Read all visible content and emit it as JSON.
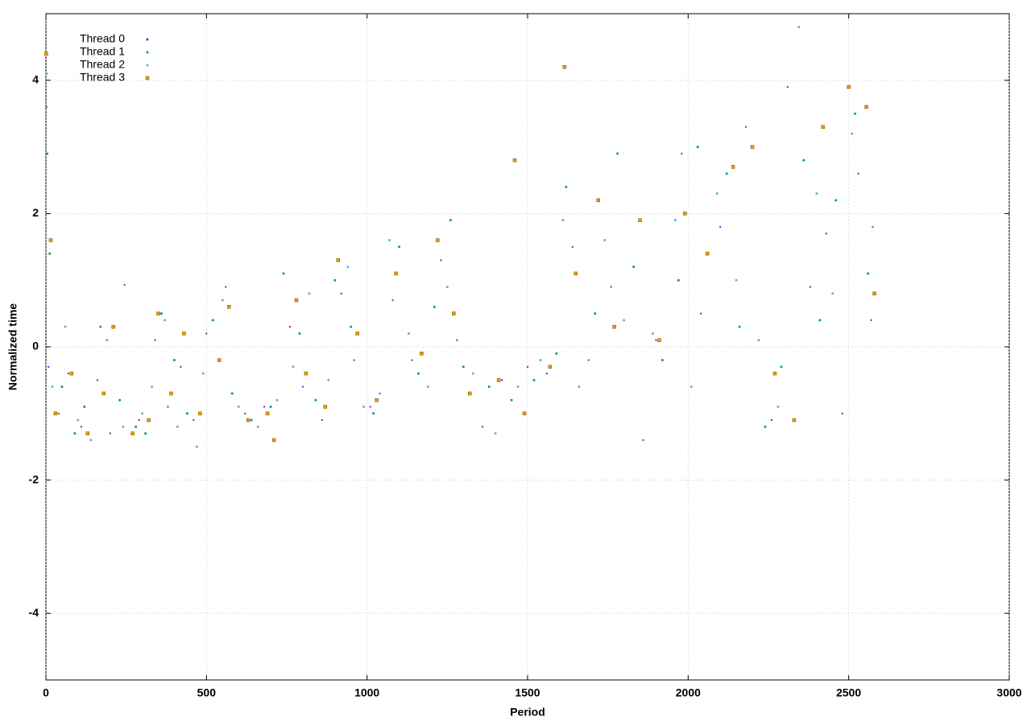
{
  "chart_data": {
    "type": "scatter",
    "xlabel": "Period",
    "ylabel": "Normalized time",
    "xlim": [
      0,
      3000
    ],
    "xticks": [
      0,
      500,
      1000,
      1500,
      2000,
      2500,
      3000
    ],
    "ylim": [
      -5,
      5
    ],
    "yticks": [
      -4,
      -2,
      0,
      2,
      4
    ],
    "grid": true,
    "legend": "upper left",
    "series": [
      {
        "name": "Thread 0",
        "color": "#9400d3",
        "x": [
          2,
          8,
          40,
          70,
          110,
          160,
          200,
          245,
          290,
          340,
          380,
          420,
          460,
          500,
          560,
          620,
          680,
          760,
          800,
          860,
          920,
          960,
          1010,
          1080,
          1140,
          1230,
          1280,
          1360,
          1420,
          1500,
          1560,
          1640,
          1690,
          1760,
          1860,
          1900,
          1980,
          2040,
          2100,
          2180,
          2260,
          2310,
          2380,
          2430,
          2480,
          2530,
          2570
        ],
        "y": [
          3.6,
          -0.3,
          -1.0,
          -0.4,
          -1.2,
          -0.5,
          -1.3,
          0.93,
          -1.1,
          0.1,
          -0.9,
          -0.3,
          -1.1,
          0.2,
          0.9,
          -1.0,
          -0.9,
          0.3,
          -0.6,
          -1.1,
          0.8,
          -0.2,
          -0.9,
          0.7,
          -0.2,
          1.3,
          0.1,
          -1.2,
          -0.5,
          -0.3,
          -0.4,
          1.5,
          -0.2,
          0.9,
          -1.4,
          0.1,
          2.9,
          0.5,
          1.8,
          3.3,
          -1.1,
          3.9,
          0.9,
          1.7,
          -1.0,
          2.6,
          0.4
        ]
      },
      {
        "name": "Thread 1",
        "color": "#009e73",
        "x": [
          4,
          12,
          50,
          90,
          120,
          170,
          230,
          280,
          310,
          360,
          400,
          440,
          520,
          580,
          640,
          700,
          740,
          790,
          840,
          900,
          950,
          1020,
          1100,
          1160,
          1210,
          1260,
          1300,
          1380,
          1450,
          1520,
          1590,
          1620,
          1710,
          1780,
          1830,
          1920,
          1970,
          2030,
          2120,
          2160,
          2240,
          2290,
          2360,
          2410,
          2460,
          2520,
          2560
        ],
        "y": [
          2.9,
          1.4,
          -0.6,
          -1.3,
          -0.9,
          0.3,
          -0.8,
          -1.2,
          -1.3,
          0.5,
          -0.2,
          -1.0,
          0.4,
          -0.7,
          -1.1,
          -0.9,
          1.1,
          0.2,
          -0.8,
          1.0,
          0.3,
          -1.0,
          1.5,
          -0.4,
          0.6,
          1.9,
          -0.3,
          -0.6,
          -0.8,
          -0.5,
          -0.1,
          2.4,
          0.5,
          2.9,
          1.2,
          -0.2,
          1.0,
          3.0,
          2.6,
          0.3,
          -1.2,
          -0.3,
          2.8,
          0.4,
          2.2,
          3.5,
          1.1
        ]
      },
      {
        "name": "Thread 2",
        "color": "#56b4e9",
        "x": [
          3,
          20,
          60,
          100,
          140,
          190,
          240,
          300,
          330,
          370,
          410,
          470,
          490,
          550,
          600,
          660,
          720,
          770,
          820,
          880,
          940,
          990,
          1040,
          1070,
          1130,
          1190,
          1250,
          1330,
          1400,
          1470,
          1540,
          1610,
          1660,
          1740,
          1800,
          1890,
          1960,
          2010,
          2090,
          2150,
          2220,
          2280,
          2345,
          2400,
          2450,
          2510,
          2575
        ],
        "y": [
          4.1,
          -0.6,
          0.3,
          -1.1,
          -1.4,
          0.1,
          -1.2,
          -1.0,
          -0.6,
          0.4,
          -1.2,
          -1.5,
          -0.4,
          0.7,
          -0.9,
          -1.2,
          -0.8,
          -0.3,
          0.8,
          -0.5,
          1.2,
          -0.9,
          -0.7,
          1.6,
          0.2,
          -0.6,
          0.9,
          -0.4,
          -1.3,
          -0.6,
          -0.2,
          1.9,
          -0.6,
          1.6,
          0.4,
          0.2,
          1.9,
          -0.6,
          2.3,
          1.0,
          0.1,
          -0.9,
          4.8,
          2.3,
          0.8,
          3.2,
          1.8
        ]
      },
      {
        "name": "Thread 3",
        "color": "#e69f00",
        "x": [
          1,
          15,
          30,
          80,
          130,
          180,
          210,
          270,
          320,
          350,
          390,
          430,
          480,
          540,
          570,
          630,
          690,
          710,
          780,
          810,
          870,
          910,
          970,
          1030,
          1090,
          1170,
          1220,
          1270,
          1320,
          1410,
          1460,
          1490,
          1570,
          1615,
          1650,
          1720,
          1770,
          1850,
          1910,
          1990,
          2060,
          2140,
          2200,
          2270,
          2330,
          2420,
          2500,
          2555,
          2580
        ],
        "y": [
          4.4,
          1.6,
          -1.0,
          -0.4,
          -1.3,
          -0.7,
          0.3,
          -1.3,
          -1.1,
          0.5,
          -0.7,
          0.2,
          -1.0,
          -0.2,
          0.6,
          -1.1,
          -1.0,
          -1.4,
          0.7,
          -0.4,
          -0.9,
          1.3,
          0.2,
          -0.8,
          1.1,
          -0.1,
          1.6,
          0.5,
          -0.7,
          -0.5,
          2.8,
          -1.0,
          -0.3,
          4.2,
          1.1,
          2.2,
          0.3,
          1.9,
          0.1,
          2.0,
          1.4,
          2.7,
          3.0,
          -0.4,
          -1.1,
          3.3,
          3.9,
          3.6,
          0.8
        ]
      }
    ]
  }
}
